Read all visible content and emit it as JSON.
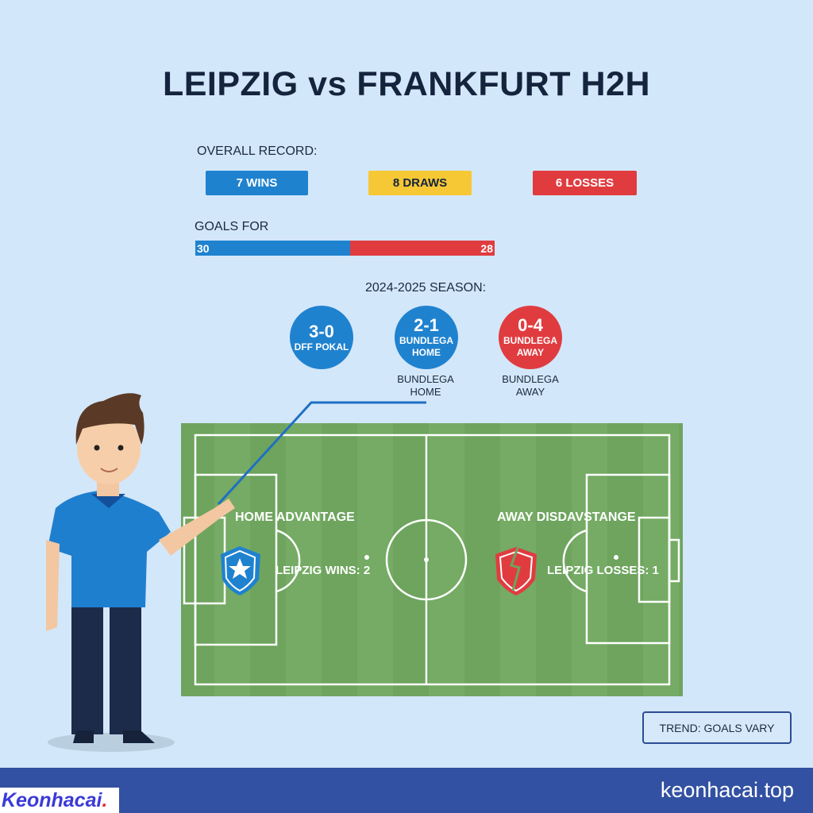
{
  "title": "LEIPZIG vs FRANKFURT H2H",
  "overall": {
    "label": "OVERALL RECORD:",
    "wins": "7 WINS",
    "draws": "8 DRAWS",
    "losses": "6 LOSSES"
  },
  "goals": {
    "label": "GOALS FOR",
    "leipzig": "30",
    "frankfurt": "28",
    "leipzig_value": 30,
    "frankfurt_value": 28
  },
  "season": {
    "label": "2024-2025 SEASON:",
    "matches": [
      {
        "score": "3-0",
        "competition": "DFF POKAL",
        "color": "#1f82cf"
      },
      {
        "score": "2-1",
        "competition": "BUNDLEGA HOME",
        "caption": "BUNDLEGA HOME",
        "color": "#1f82cf"
      },
      {
        "score": "0-4",
        "competition": "BUNDLEGA AWAY",
        "caption": "BUNDLEGA AWAY",
        "color": "#e03c40"
      }
    ]
  },
  "pitch": {
    "home_title": "HOME ADVANTAGE",
    "home_stat": "LEIPZIG WINS: 2",
    "away_title": "AWAY DISDAVSTANGE",
    "away_stat": "LEIPZIG LOSSES: 1",
    "home_icon": "shield-star-icon",
    "away_icon": "broken-shield-icon"
  },
  "trend": "TREND: GOALS VARY",
  "footer": {
    "logo": "Keonhacai",
    "site": "keonhacai.top"
  },
  "colors": {
    "win": "#1f82cf",
    "draw": "#f6c835",
    "loss": "#e03c40",
    "pitch": "#6ea45e",
    "footer": "#3251a2"
  }
}
